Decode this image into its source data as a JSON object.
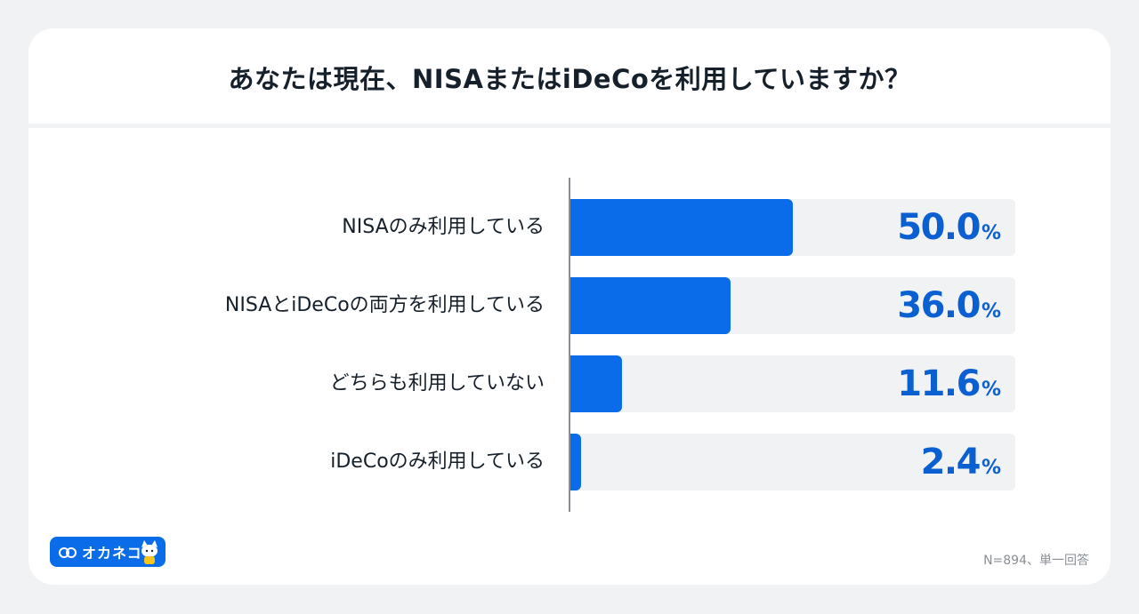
{
  "title": "あなたは現在、NISAまたはiDeCoを利用していますか？",
  "note": "N=894、単一回答",
  "logo": {
    "text": "オカネコ",
    "icon": "infinity-icon",
    "mascot": "cat-mascot-icon"
  },
  "colors": {
    "bar": "#0a6ce8",
    "value_text": "#0a5fd1",
    "track": "#f1f2f4"
  },
  "chart_data": {
    "type": "bar",
    "orientation": "horizontal",
    "title": "あなたは現在、NISAまたはiDeCoを利用していますか？",
    "categories": [
      "NISAのみ利用している",
      "NISAとiDeCoの両方を利用している",
      "どちらも利用していない",
      "iDeCoのみ利用している"
    ],
    "values": [
      50.0,
      36.0,
      11.6,
      2.4
    ],
    "value_labels": [
      "50.0",
      "36.0",
      "11.6",
      "2.4"
    ],
    "unit": "%",
    "xlim": [
      0,
      100
    ],
    "grid": false
  }
}
